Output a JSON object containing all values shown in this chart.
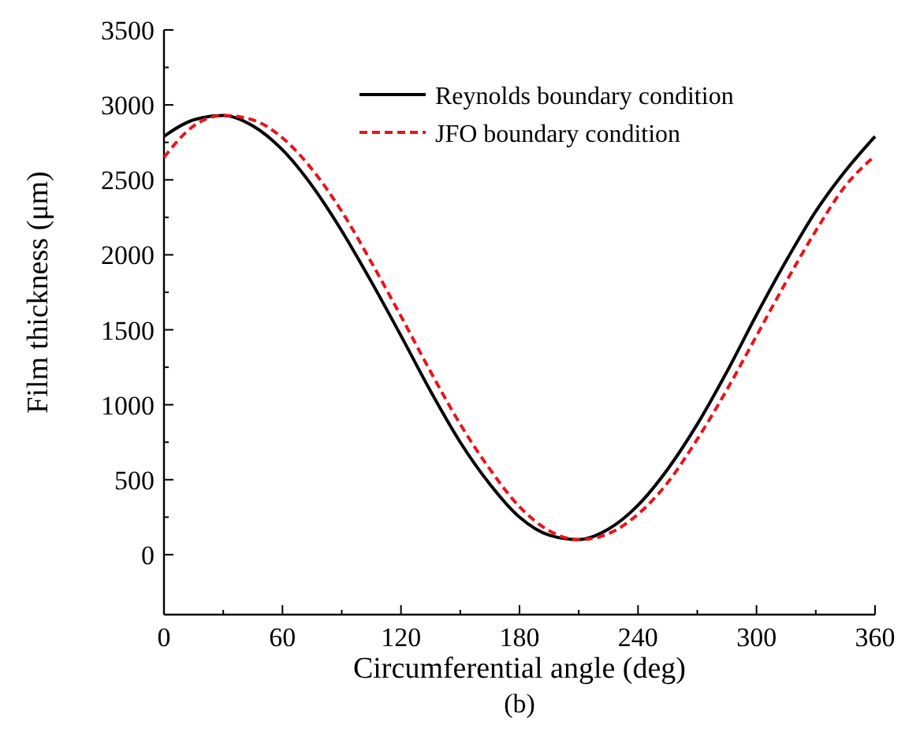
{
  "chart_data": {
    "type": "line",
    "title": "(b)",
    "xlabel": "Circumferential angle (deg)",
    "ylabel": "Film thickness (μm)",
    "x": [
      0,
      15,
      30,
      45,
      60,
      75,
      90,
      105,
      120,
      135,
      150,
      165,
      180,
      195,
      210,
      225,
      240,
      255,
      270,
      285,
      300,
      315,
      330,
      345,
      360
    ],
    "series": [
      {
        "name": "Reynolds boundary condition",
        "color": "#000000",
        "line_style": "solid",
        "values": [
          2790,
          2900,
          2930,
          2860,
          2700,
          2460,
          2160,
          1820,
          1460,
          1090,
          750,
          470,
          250,
          130,
          100,
          170,
          330,
          570,
          870,
          1220,
          1600,
          1960,
          2290,
          2560,
          2790
        ]
      },
      {
        "name": "JFO boundary condition",
        "color": "#e8141c",
        "line_style": "dashed",
        "values": [
          2650,
          2860,
          2930,
          2900,
          2780,
          2570,
          2290,
          1950,
          1590,
          1220,
          870,
          570,
          320,
          160,
          100,
          140,
          270,
          480,
          770,
          1100,
          1460,
          1820,
          2160,
          2460,
          2660
        ]
      }
    ],
    "xlim": [
      0,
      360
    ],
    "xticks": [
      0,
      60,
      120,
      180,
      240,
      300,
      360
    ],
    "ylim": [
      -400,
      3500
    ],
    "yticks": [
      0,
      500,
      1000,
      1500,
      2000,
      2500,
      3000,
      3500
    ],
    "grid": false,
    "legend": "top right"
  }
}
